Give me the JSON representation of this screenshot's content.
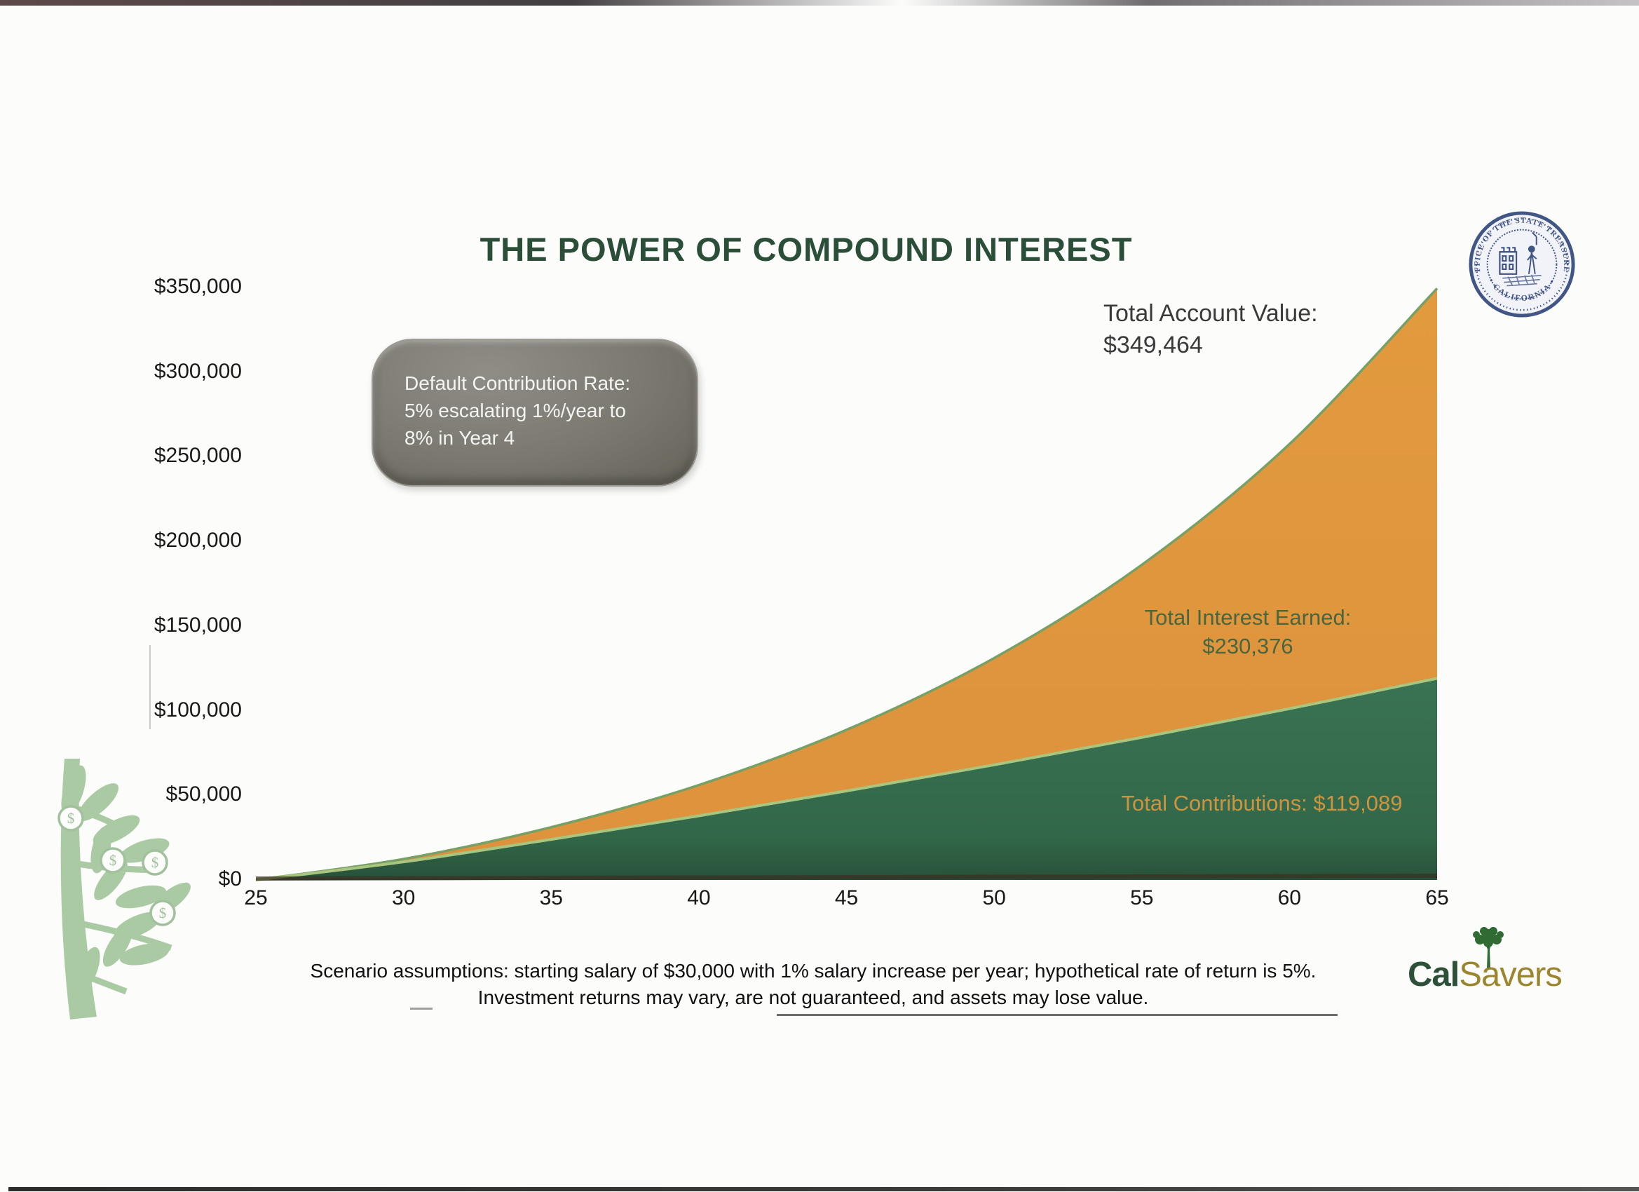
{
  "title": "THE POWER OF COMPOUND INTEREST",
  "callout": {
    "line1": "Default Contribution Rate:",
    "line2": "5% escalating 1%/year to",
    "line3": "8% in Year 4"
  },
  "annotations": {
    "account": {
      "label": "Total Account Value:",
      "value": "$349,464"
    },
    "interest": {
      "label": "Total Interest Earned:",
      "value": "$230,376"
    },
    "contributions": {
      "label": "Total Contributions: $119,089"
    }
  },
  "footer": {
    "line1": "Scenario assumptions: starting salary of $30,000 with 1% salary increase per year; hypothetical rate of return is 5%.",
    "line2": "Investment returns may vary, are not guaranteed, and assets may lose value."
  },
  "logo": {
    "cal": "Cal",
    "savers": "Savers"
  },
  "seal": {
    "top_text": "OFFICE OF THE STATE TREASURER",
    "bottom_text": "• CALIFORNIA •"
  },
  "icons": {
    "seal": "california-state-treasurer-seal",
    "plant": "money-plant",
    "logo_tree": "calsavers-tree",
    "coin": "dollar-coin"
  },
  "colors": {
    "orange_area": "#E0963C",
    "green_area": "#336A4C",
    "green_edge": "#AAC57E",
    "orange_edge": "#76A065",
    "title_green": "#2A4E38",
    "callout_gray": "#7A786F",
    "interest_text_green": "#4A663F",
    "contrib_text_orange": "#CD9440",
    "logo_gold": "#9C852F",
    "logo_green": "#2D5038",
    "seal_blue": "#33497D",
    "plant_green": "#A6C8A0"
  },
  "chart_data": {
    "type": "area",
    "title": "THE POWER OF COMPOUND INTEREST",
    "xlabel": "",
    "ylabel": "",
    "x": [
      25,
      30,
      35,
      40,
      45,
      50,
      55,
      60,
      65
    ],
    "x_ticks": [
      "25",
      "30",
      "35",
      "40",
      "45",
      "50",
      "55",
      "60",
      "65"
    ],
    "y_ticks": [
      {
        "label": "$350,000",
        "value": 350000
      },
      {
        "label": "$300,000",
        "value": 300000
      },
      {
        "label": "$250,000",
        "value": 250000
      },
      {
        "label": "$200,000",
        "value": 200000
      },
      {
        "label": "$150,000",
        "value": 150000
      },
      {
        "label": "$100,000",
        "value": 100000
      },
      {
        "label": "$50,000",
        "value": 50000
      },
      {
        "label": "$0",
        "value": 0
      }
    ],
    "ylim": [
      0,
      350000
    ],
    "xlim": [
      25,
      65
    ],
    "grid": false,
    "legend": "none",
    "series": [
      {
        "name": "Total Account Value",
        "final_value": 349464,
        "values": [
          0,
          12400,
          31200,
          56100,
          88700,
          131100,
          186200,
          257500,
          349464
        ],
        "color": "#E0963C"
      },
      {
        "name": "Total Contributions",
        "final_value": 119089,
        "values": [
          0,
          10700,
          24000,
          37900,
          52600,
          68000,
          84200,
          101200,
          119089
        ],
        "color": "#336A4C"
      }
    ],
    "derived": {
      "total_interest_earned": 230376
    }
  }
}
